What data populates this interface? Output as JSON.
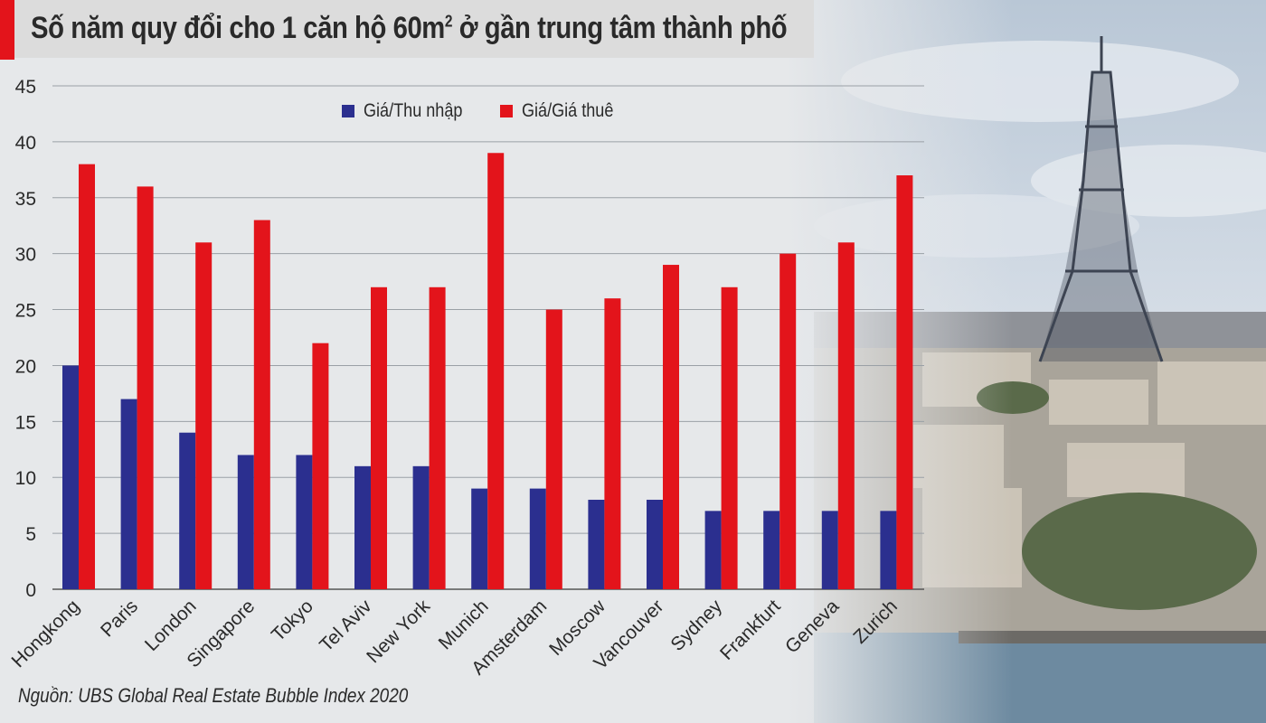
{
  "chart_data": {
    "type": "bar",
    "title": "Số năm quy đổi cho 1 căn hộ 60m",
    "title_sup": "2",
    "title_tail": " ở gần trung tâm thành phố",
    "source": "Nguồn: UBS Global Real Estate Bubble Index 2020",
    "categories": [
      "Hongkong",
      "Paris",
      "London",
      "Singapore",
      "Tokyo",
      "Tel Aviv",
      "New York",
      "Munich",
      "Amsterdam",
      "Moscow",
      "Vancouver",
      "Sydney",
      "Frankfurt",
      "Geneva",
      "Zurich"
    ],
    "series": [
      {
        "name": "Giá/Thu nhập",
        "color": "#2b2f8f",
        "values": [
          20,
          17,
          14,
          12,
          12,
          11,
          11,
          9,
          9,
          8,
          8,
          7,
          7,
          7,
          7
        ]
      },
      {
        "name": "Giá/Giá thuê",
        "color": "#e3141b",
        "values": [
          38,
          36,
          31,
          33,
          22,
          27,
          27,
          39,
          25,
          26,
          29,
          27,
          30,
          31,
          37
        ]
      }
    ],
    "ylim": [
      0,
      45
    ],
    "yticks": [
      0,
      5,
      10,
      15,
      20,
      25,
      30,
      35,
      40,
      45
    ],
    "grid": true,
    "legend_position": "top"
  }
}
